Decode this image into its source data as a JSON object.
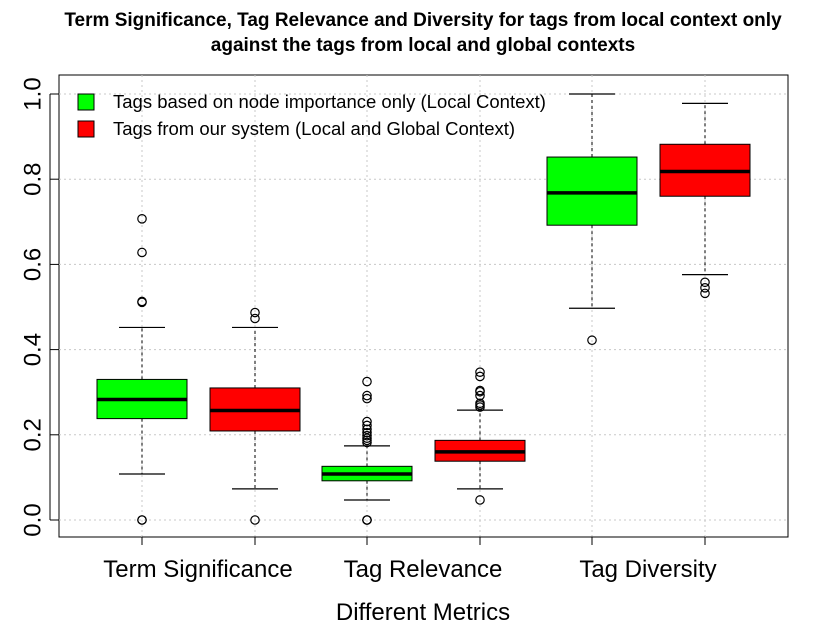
{
  "chart_data": {
    "type": "boxplot",
    "title": "Term Significance, Tag Relevance and Diversity for tags from local context only",
    "subtitle": "against the tags from local and global contexts",
    "xlabel": "Different Metrics",
    "ylabel": "",
    "ylim": [
      0.0,
      1.0
    ],
    "yticks": [
      "0.0",
      "0.2",
      "0.4",
      "0.6",
      "0.8",
      "1.0"
    ],
    "categories": [
      "Term Significance",
      "Tag Relevance",
      "Tag Diversity"
    ],
    "grid": true,
    "legend_position": "top-left",
    "series": [
      {
        "name": "Tags based on node importance only (Local Context)",
        "color": "#00ff00",
        "boxes": [
          {
            "whisker_low": 0.108,
            "q1": 0.238,
            "median": 0.283,
            "q3": 0.33,
            "whisker_high": 0.452,
            "outliers": [
              0.0,
              0.0,
              0.511,
              0.513,
              0.628,
              0.707
            ]
          },
          {
            "whisker_low": 0.047,
            "q1": 0.092,
            "median": 0.108,
            "q3": 0.126,
            "whisker_high": 0.174,
            "outliers": [
              0.0,
              0.0,
              0.0,
              0.182,
              0.187,
              0.192,
              0.198,
              0.205,
              0.213,
              0.222,
              0.231,
              0.285,
              0.292,
              0.325
            ]
          },
          {
            "whisker_low": 0.497,
            "q1": 0.692,
            "median": 0.768,
            "q3": 0.852,
            "whisker_high": 1.0,
            "outliers": [
              0.422
            ]
          }
        ]
      },
      {
        "name": "Tags from our system (Local and Global Context)",
        "color": "#ff0000",
        "boxes": [
          {
            "whisker_low": 0.073,
            "q1": 0.209,
            "median": 0.257,
            "q3": 0.31,
            "whisker_high": 0.452,
            "outliers": [
              0.0,
              0.473,
              0.487
            ]
          },
          {
            "whisker_low": 0.073,
            "q1": 0.138,
            "median": 0.16,
            "q3": 0.187,
            "whisker_high": 0.258,
            "outliers": [
              0.047,
              0.265,
              0.27,
              0.274,
              0.292,
              0.301,
              0.304,
              0.337,
              0.347
            ]
          },
          {
            "whisker_low": 0.576,
            "q1": 0.76,
            "median": 0.818,
            "q3": 0.882,
            "whisker_high": 0.978,
            "outliers": [
              0.532,
              0.545,
              0.558
            ]
          }
        ]
      }
    ]
  }
}
